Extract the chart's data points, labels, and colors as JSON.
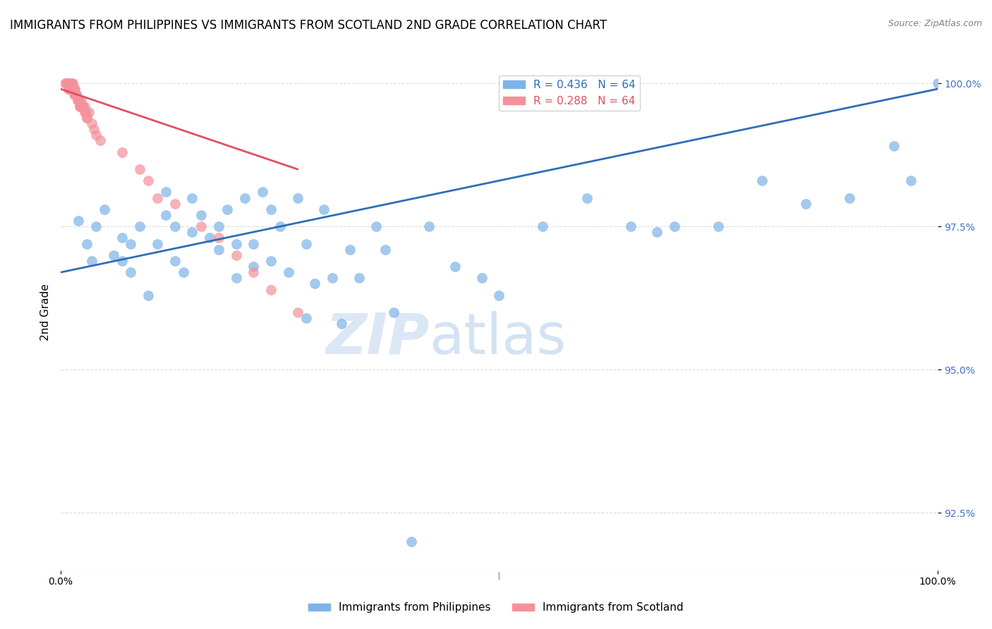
{
  "title": "IMMIGRANTS FROM PHILIPPINES VS IMMIGRANTS FROM SCOTLAND 2ND GRADE CORRELATION CHART",
  "source": "Source: ZipAtlas.com",
  "xlabel": "",
  "ylabel": "2nd Grade",
  "xlim": [
    0.0,
    1.0
  ],
  "ylim": [
    0.915,
    1.005
  ],
  "yticks": [
    0.925,
    0.95,
    0.975,
    1.0
  ],
  "ytick_labels": [
    "92.5%",
    "95.0%",
    "97.5%",
    "100.0%"
  ],
  "xtick_labels": [
    "0.0%",
    "100.0%"
  ],
  "xticks": [
    0.0,
    1.0
  ],
  "legend_blue_r": "R = 0.436",
  "legend_blue_n": "N = 64",
  "legend_pink_r": "R = 0.288",
  "legend_pink_n": "N = 64",
  "blue_color": "#7EB3E8",
  "pink_color": "#F4919B",
  "line_blue_color": "#2F6DB5",
  "line_pink_color": "#E05060",
  "watermark_zip": "ZIP",
  "watermark_atlas": "atlas",
  "blue_x": [
    0.02,
    0.03,
    0.035,
    0.04,
    0.05,
    0.06,
    0.07,
    0.07,
    0.08,
    0.08,
    0.09,
    0.1,
    0.11,
    0.12,
    0.12,
    0.13,
    0.13,
    0.14,
    0.15,
    0.15,
    0.16,
    0.17,
    0.18,
    0.18,
    0.19,
    0.2,
    0.2,
    0.21,
    0.22,
    0.22,
    0.23,
    0.24,
    0.24,
    0.25,
    0.26,
    0.27,
    0.28,
    0.28,
    0.29,
    0.3,
    0.31,
    0.32,
    0.33,
    0.34,
    0.36,
    0.37,
    0.38,
    0.4,
    0.42,
    0.45,
    0.48,
    0.5,
    0.55,
    0.6,
    0.65,
    0.68,
    0.7,
    0.75,
    0.8,
    0.85,
    0.9,
    0.95,
    0.97,
    1.0
  ],
  "blue_y": [
    0.976,
    0.972,
    0.969,
    0.975,
    0.978,
    0.97,
    0.973,
    0.969,
    0.972,
    0.967,
    0.975,
    0.963,
    0.972,
    0.977,
    0.981,
    0.975,
    0.969,
    0.967,
    0.98,
    0.974,
    0.977,
    0.973,
    0.975,
    0.971,
    0.978,
    0.972,
    0.966,
    0.98,
    0.972,
    0.968,
    0.981,
    0.969,
    0.978,
    0.975,
    0.967,
    0.98,
    0.972,
    0.959,
    0.965,
    0.978,
    0.966,
    0.958,
    0.971,
    0.966,
    0.975,
    0.971,
    0.96,
    0.92,
    0.975,
    0.968,
    0.966,
    0.963,
    0.975,
    0.98,
    0.975,
    0.974,
    0.975,
    0.975,
    0.983,
    0.979,
    0.98,
    0.989,
    0.983,
    1.0
  ],
  "pink_x": [
    0.005,
    0.006,
    0.007,
    0.008,
    0.008,
    0.009,
    0.009,
    0.01,
    0.01,
    0.011,
    0.012,
    0.013,
    0.014,
    0.015,
    0.015,
    0.016,
    0.016,
    0.017,
    0.018,
    0.019,
    0.02,
    0.021,
    0.022,
    0.023,
    0.025,
    0.027,
    0.028,
    0.03,
    0.032,
    0.035,
    0.038,
    0.04,
    0.045,
    0.07,
    0.008,
    0.009,
    0.01,
    0.011,
    0.012,
    0.013,
    0.014,
    0.015,
    0.016,
    0.017,
    0.018,
    0.019,
    0.02,
    0.021,
    0.022,
    0.023,
    0.025,
    0.027,
    0.028,
    0.03,
    0.09,
    0.1,
    0.11,
    0.13,
    0.16,
    0.18,
    0.2,
    0.22,
    0.24,
    0.27
  ],
  "pink_y": [
    1.0,
    1.0,
    1.0,
    1.0,
    1.0,
    0.999,
    0.999,
    0.999,
    0.999,
    0.999,
    1.0,
    0.999,
    1.0,
    0.999,
    0.998,
    0.999,
    0.998,
    0.998,
    0.998,
    0.997,
    0.997,
    0.997,
    0.996,
    0.997,
    0.996,
    0.996,
    0.995,
    0.994,
    0.995,
    0.993,
    0.992,
    0.991,
    0.99,
    0.988,
    1.0,
    1.0,
    0.999,
    0.999,
    0.999,
    1.0,
    0.999,
    0.999,
    0.998,
    0.998,
    0.998,
    0.997,
    0.997,
    0.997,
    0.996,
    0.996,
    0.996,
    0.995,
    0.995,
    0.994,
    0.985,
    0.983,
    0.98,
    0.979,
    0.975,
    0.973,
    0.97,
    0.967,
    0.964,
    0.96
  ],
  "blue_line_x": [
    0.0,
    1.0
  ],
  "blue_line_y": [
    0.967,
    0.999
  ],
  "pink_line_x": [
    0.0,
    0.27
  ],
  "pink_line_y": [
    0.999,
    0.985
  ],
  "background_color": "#ffffff",
  "grid_color": "#cccccc",
  "title_fontsize": 12,
  "axis_label_fontsize": 11,
  "tick_fontsize": 10,
  "marker_size": 10
}
